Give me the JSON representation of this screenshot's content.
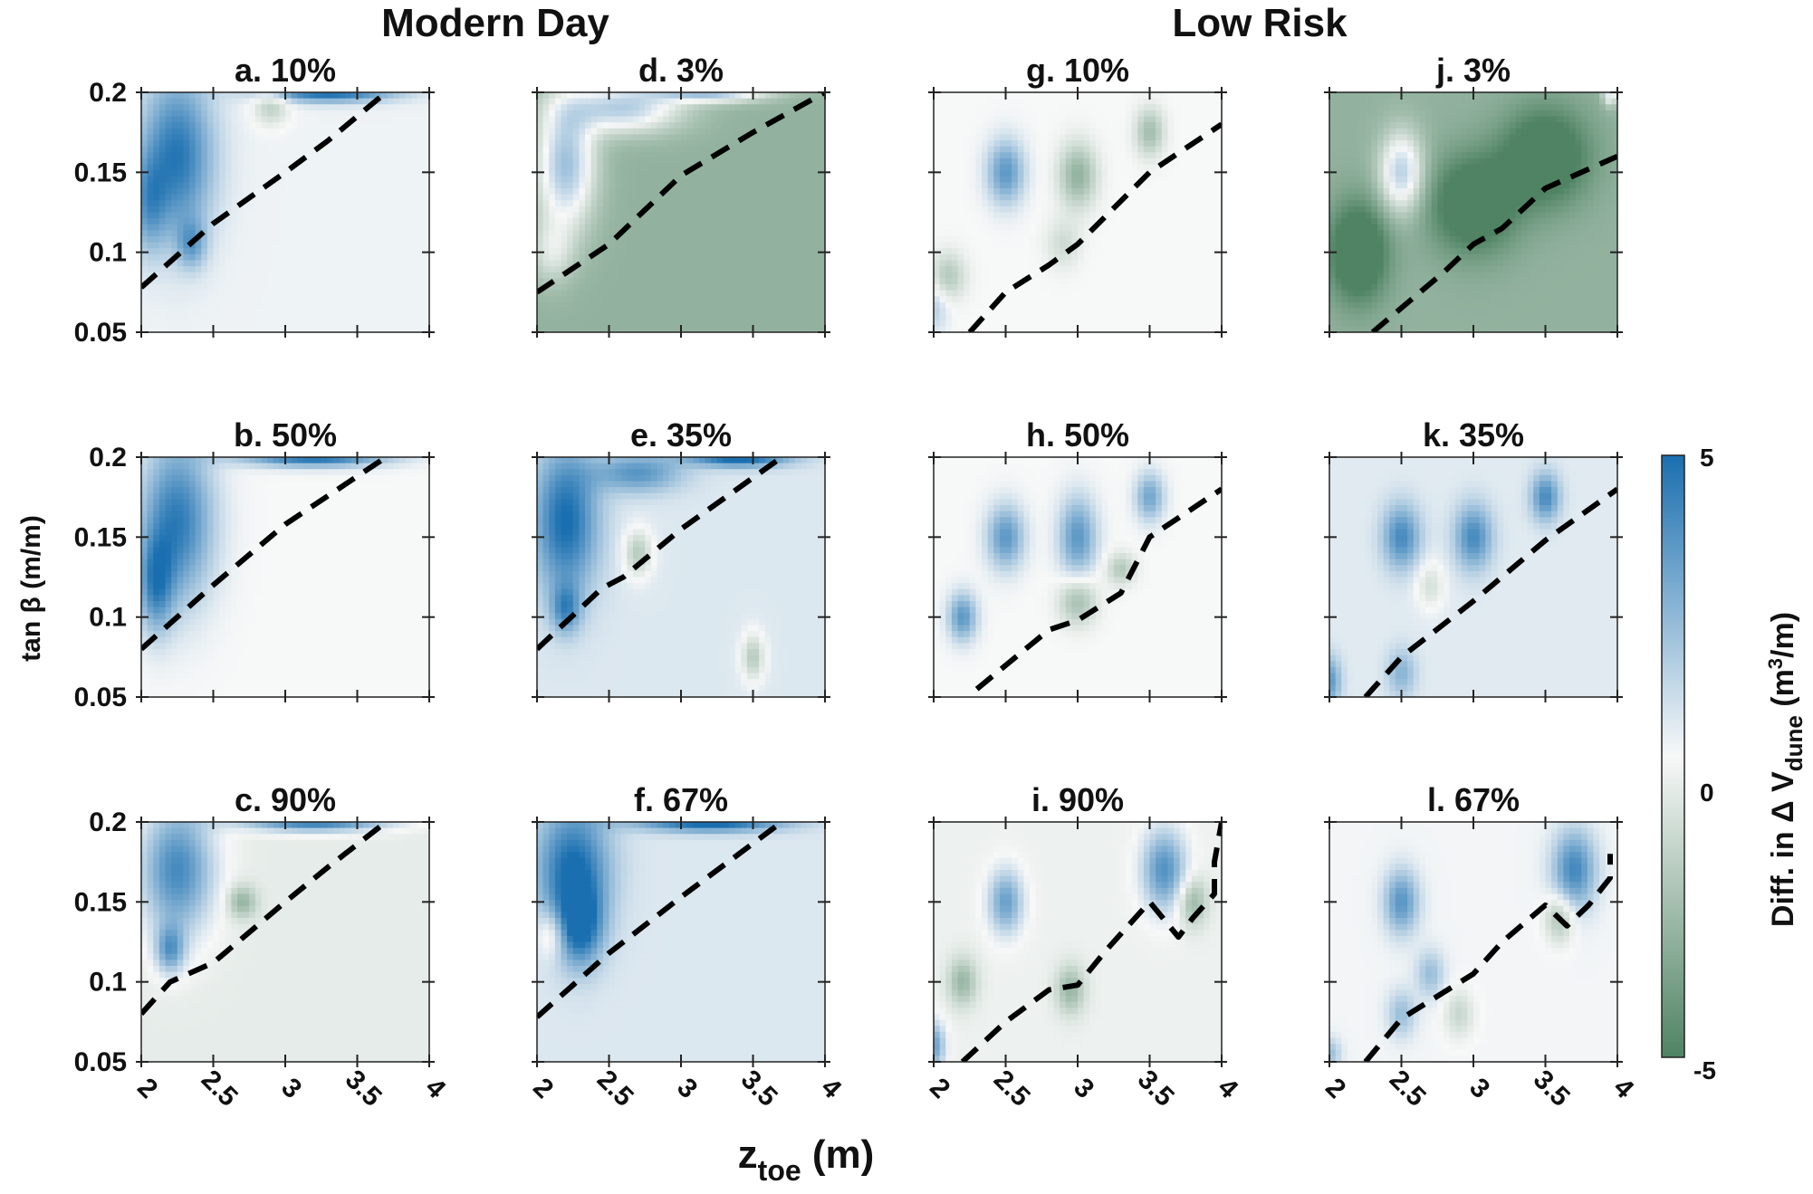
{
  "figure": {
    "group_titles": [
      "Modern Day",
      "Low Risk"
    ],
    "x_label_main": "z",
    "x_label_sub": "toe",
    "x_label_unit": " (m)",
    "y_label": "tan β (m/m)"
  },
  "colorbar": {
    "label_prefix": "Diff. in Δ V",
    "label_sub": "dune",
    "label_unit_open": " (m",
    "label_unit_sup": "3",
    "label_unit_close": "/m)",
    "min": -5,
    "max": 5,
    "ticks": [
      "5",
      "0",
      "-5"
    ],
    "colors": {
      "positive": "#1a6fb0",
      "neutral": "#f7f8f8",
      "negative": "#4f8363"
    }
  },
  "chart_data": {
    "type": "heatmap",
    "x_ticks": [
      "2",
      "2.5",
      "3",
      "3.5",
      "4"
    ],
    "y_ticks": [
      "0.2",
      "0.15",
      "0.1",
      "0.05"
    ],
    "xlim": [
      2,
      4
    ],
    "ylim": [
      0.05,
      0.2
    ],
    "panels": [
      {
        "title": "a. 10%",
        "background": 0.2,
        "blobs": [
          [
            2.25,
            0.16,
            0.25,
            0.05,
            4.5
          ],
          [
            2.05,
            0.13,
            0.12,
            0.03,
            2.5
          ],
          [
            2.35,
            0.105,
            0.1,
            0.015,
            2.5
          ],
          [
            3.3,
            0.2,
            0.45,
            0.006,
            5
          ],
          [
            2.9,
            0.192,
            0.12,
            0.012,
            -2
          ]
        ],
        "dashed": [
          [
            2,
            0.078
          ],
          [
            2.5,
            0.118
          ],
          [
            3,
            0.15
          ],
          [
            3.3,
            0.17
          ],
          [
            3.7,
            0.2
          ]
        ]
      },
      {
        "title": "b. 50%",
        "background": 0,
        "blobs": [
          [
            2.25,
            0.16,
            0.25,
            0.05,
            4.5
          ],
          [
            2.1,
            0.12,
            0.12,
            0.03,
            3.5
          ],
          [
            3.2,
            0.2,
            0.5,
            0.006,
            5
          ]
        ],
        "dashed": [
          [
            2,
            0.08
          ],
          [
            2.5,
            0.12
          ],
          [
            3,
            0.158
          ],
          [
            3.7,
            0.2
          ]
        ]
      },
      {
        "title": "c. 90%",
        "background": -0.5,
        "blobs": [
          [
            2.25,
            0.17,
            0.25,
            0.04,
            4.5
          ],
          [
            2.2,
            0.12,
            0.1,
            0.015,
            3.5
          ],
          [
            3.2,
            0.2,
            0.5,
            0.006,
            5
          ],
          [
            2.7,
            0.15,
            0.1,
            0.01,
            -2.5
          ]
        ],
        "dashed": [
          [
            2,
            0.08
          ],
          [
            2.2,
            0.1
          ],
          [
            2.5,
            0.112
          ],
          [
            3,
            0.15
          ],
          [
            3.3,
            0.172
          ],
          [
            3.7,
            0.2
          ]
        ]
      },
      {
        "title": "d. 3%",
        "background": -3,
        "blobs": [
          [
            2.2,
            0.155,
            0.2,
            0.04,
            5
          ],
          [
            2.6,
            0.19,
            0.4,
            0.015,
            4.5
          ],
          [
            3.2,
            0.2,
            0.4,
            0.006,
            5
          ],
          [
            2.1,
            0.1,
            0.15,
            0.02,
            2
          ]
        ],
        "dashed": [
          [
            2,
            0.075
          ],
          [
            2.5,
            0.105
          ],
          [
            3,
            0.148
          ],
          [
            3.5,
            0.175
          ],
          [
            4,
            0.2
          ]
        ]
      },
      {
        "title": "e. 35%",
        "background": 0.6,
        "blobs": [
          [
            2.2,
            0.16,
            0.22,
            0.045,
            4.5
          ],
          [
            2.7,
            0.19,
            0.3,
            0.012,
            3
          ],
          [
            3.4,
            0.2,
            0.35,
            0.006,
            5
          ],
          [
            2.2,
            0.105,
            0.1,
            0.015,
            3
          ],
          [
            2.7,
            0.14,
            0.1,
            0.015,
            -2.5
          ],
          [
            3.5,
            0.075,
            0.08,
            0.015,
            -2.5
          ]
        ],
        "dashed": [
          [
            2,
            0.08
          ],
          [
            2.45,
            0.118
          ],
          [
            2.6,
            0.125
          ],
          [
            3,
            0.155
          ],
          [
            3.7,
            0.2
          ]
        ]
      },
      {
        "title": "f. 67%",
        "background": 0.6,
        "blobs": [
          [
            2.25,
            0.17,
            0.25,
            0.04,
            4.5
          ],
          [
            2.3,
            0.135,
            0.15,
            0.025,
            4
          ],
          [
            3.2,
            0.2,
            0.5,
            0.006,
            5
          ],
          [
            2.1,
            0.13,
            0.1,
            0.015,
            -2
          ]
        ],
        "dashed": [
          [
            2,
            0.078
          ],
          [
            2.5,
            0.118
          ],
          [
            3,
            0.153
          ],
          [
            3.7,
            0.2
          ]
        ]
      },
      {
        "title": "g. 10%",
        "background": 0,
        "blobs": [
          [
            2.5,
            0.15,
            0.13,
            0.02,
            3.5
          ],
          [
            3,
            0.148,
            0.13,
            0.02,
            -3
          ],
          [
            3.5,
            0.175,
            0.1,
            0.015,
            -2.5
          ],
          [
            2.1,
            0.085,
            0.12,
            0.015,
            -2
          ],
          [
            2,
            0.065,
            0.1,
            0.015,
            1.5
          ],
          [
            2.9,
            0.105,
            0.12,
            0.015,
            -1.2
          ]
        ],
        "dashed": [
          [
            2.25,
            0.05
          ],
          [
            2.5,
            0.075
          ],
          [
            2.8,
            0.092
          ],
          [
            3,
            0.105
          ],
          [
            3.5,
            0.15
          ],
          [
            4,
            0.18
          ]
        ]
      },
      {
        "title": "h. 50%",
        "background": 0,
        "blobs": [
          [
            2.5,
            0.15,
            0.13,
            0.02,
            3.5
          ],
          [
            3,
            0.15,
            0.13,
            0.025,
            3.5
          ],
          [
            3.5,
            0.175,
            0.1,
            0.015,
            3
          ],
          [
            2.2,
            0.1,
            0.1,
            0.015,
            3.5
          ],
          [
            3,
            0.11,
            0.13,
            0.015,
            -2.5
          ],
          [
            3.3,
            0.13,
            0.1,
            0.01,
            -2
          ]
        ],
        "dashed": [
          [
            2.3,
            0.055
          ],
          [
            2.8,
            0.092
          ],
          [
            3,
            0.098
          ],
          [
            3.3,
            0.115
          ],
          [
            3.5,
            0.15
          ],
          [
            4,
            0.18
          ]
        ]
      },
      {
        "title": "i. 90%",
        "background": -0.3,
        "blobs": [
          [
            2.5,
            0.15,
            0.12,
            0.02,
            3.5
          ],
          [
            3.6,
            0.17,
            0.15,
            0.025,
            4
          ],
          [
            3.8,
            0.15,
            0.1,
            0.015,
            -2.5
          ],
          [
            2.2,
            0.1,
            0.1,
            0.015,
            -2.5
          ],
          [
            2.95,
            0.095,
            0.1,
            0.015,
            -2.5
          ],
          [
            2,
            0.06,
            0.08,
            0.015,
            3.5
          ]
        ],
        "dashed": [
          [
            2.2,
            0.05
          ],
          [
            2.5,
            0.075
          ],
          [
            2.8,
            0.095
          ],
          [
            3,
            0.098
          ],
          [
            3.2,
            0.12
          ],
          [
            3.5,
            0.15
          ],
          [
            3.7,
            0.128
          ],
          [
            3.8,
            0.14
          ],
          [
            3.95,
            0.155
          ],
          [
            3.95,
            0.175
          ],
          [
            4,
            0.2
          ]
        ]
      },
      {
        "title": "j. 3%",
        "background": -3,
        "blobs": [
          [
            2.5,
            0.15,
            0.15,
            0.025,
            4.5
          ],
          [
            2.2,
            0.1,
            0.2,
            0.03,
            -4
          ],
          [
            3,
            0.13,
            0.3,
            0.03,
            -3.5
          ],
          [
            3.5,
            0.16,
            0.3,
            0.03,
            -3.5
          ],
          [
            3.95,
            0.2,
            0.05,
            0.008,
            4
          ],
          [
            2.7,
            0.19,
            0.5,
            0.015,
            0
          ]
        ],
        "dashed": [
          [
            2.3,
            0.05
          ],
          [
            2.8,
            0.088
          ],
          [
            3,
            0.105
          ],
          [
            3.2,
            0.115
          ],
          [
            3.5,
            0.14
          ],
          [
            4,
            0.16
          ]
        ]
      },
      {
        "title": "k. 35%",
        "background": 0.5,
        "blobs": [
          [
            2.5,
            0.15,
            0.13,
            0.02,
            3.5
          ],
          [
            3,
            0.15,
            0.13,
            0.02,
            3.5
          ],
          [
            3.5,
            0.175,
            0.1,
            0.015,
            3.5
          ],
          [
            2,
            0.06,
            0.08,
            0.015,
            3
          ],
          [
            2.5,
            0.065,
            0.1,
            0.015,
            2
          ],
          [
            2.7,
            0.12,
            0.1,
            0.015,
            -1.5
          ]
        ],
        "dashed": [
          [
            2.25,
            0.05
          ],
          [
            2.5,
            0.075
          ],
          [
            3,
            0.11
          ],
          [
            3.5,
            0.148
          ],
          [
            4,
            0.18
          ]
        ]
      },
      {
        "title": "l. 67%",
        "background": 0.1,
        "blobs": [
          [
            2.5,
            0.15,
            0.12,
            0.02,
            3.5
          ],
          [
            3.7,
            0.17,
            0.15,
            0.025,
            4
          ],
          [
            3.6,
            0.14,
            0.1,
            0.015,
            -2.5
          ],
          [
            2.7,
            0.105,
            0.1,
            0.015,
            2
          ],
          [
            2.9,
            0.08,
            0.1,
            0.015,
            -1.5
          ],
          [
            2,
            0.055,
            0.08,
            0.01,
            2
          ],
          [
            2.5,
            0.08,
            0.1,
            0.015,
            2
          ]
        ],
        "dashed": [
          [
            2.25,
            0.05
          ],
          [
            2.5,
            0.077
          ],
          [
            3,
            0.105
          ],
          [
            3.2,
            0.125
          ],
          [
            3.5,
            0.148
          ],
          [
            3.65,
            0.135
          ],
          [
            3.8,
            0.148
          ],
          [
            3.95,
            0.165
          ],
          [
            3.95,
            0.18
          ]
        ]
      }
    ]
  }
}
